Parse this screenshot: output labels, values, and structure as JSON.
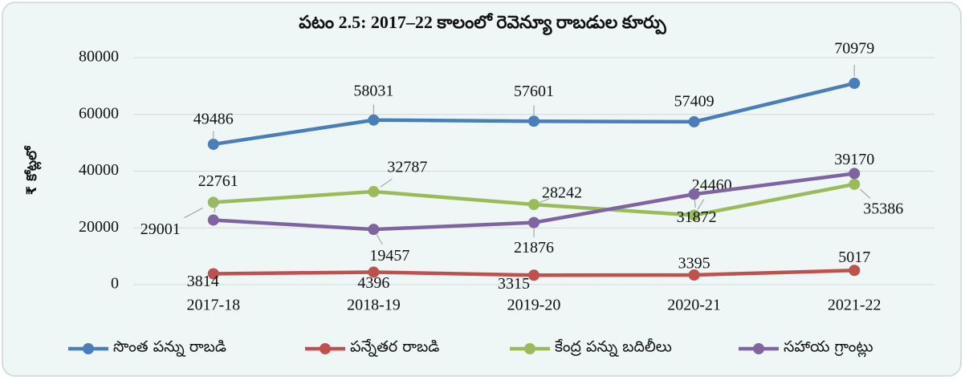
{
  "chart_data": {
    "type": "line",
    "title": "పటం 2.5: 2017–22 కాలంలో రెవెన్యూ రాబడుల కూర్పు",
    "y_label": "₹ కోట్లలో",
    "categories": [
      "2017-18",
      "2018-19",
      "2019-20",
      "2020-21",
      "2021-22"
    ],
    "series": [
      {
        "name": "సొంత పన్ను రాబడి",
        "color": "#4a7ebb",
        "values": [
          49486,
          58031,
          57601,
          57409,
          70979
        ]
      },
      {
        "name": "పన్నేతర రాబడి",
        "color": "#c0504d",
        "values": [
          3814,
          4396,
          3315,
          3395,
          5017
        ]
      },
      {
        "name": "కేంద్ర పన్ను బదిలీలు",
        "color": "#9bbb59",
        "values": [
          29001,
          32787,
          28242,
          24460,
          35386
        ]
      },
      {
        "name": "సహాయ గ్రాంట్లు",
        "color": "#8064a2",
        "values": [
          22761,
          19457,
          21876,
          31872,
          39170
        ]
      }
    ],
    "ylim": [
      0,
      80000
    ],
    "yticks": [
      0,
      20000,
      40000,
      60000,
      80000
    ],
    "grid": true,
    "legend": "bottom"
  }
}
